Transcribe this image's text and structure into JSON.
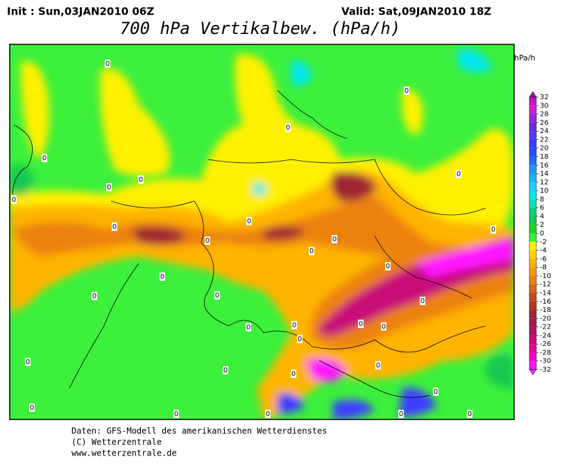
{
  "header": {
    "init": "Init : Sun,03JAN2010 06Z",
    "valid": "Valid: Sat,09JAN2010 18Z",
    "title": "700 hPa Vertikalbew. (hPa/h)"
  },
  "map": {
    "contour_label": "0"
  },
  "legend": {
    "unit": "hPa/h",
    "levels": [
      32,
      30,
      28,
      26,
      24,
      22,
      20,
      18,
      16,
      14,
      12,
      10,
      8,
      6,
      4,
      2,
      0,
      -2,
      -4,
      -6,
      -8,
      -10,
      -12,
      -14,
      -16,
      -18,
      -20,
      -22,
      -24,
      -26,
      -28,
      -30,
      -32
    ],
    "colors": [
      "#8c1a8c",
      "#c814c8",
      "#d21ed2",
      "#9628dc",
      "#6e28e6",
      "#5a3cf0",
      "#3c3cff",
      "#2850ff",
      "#1e6eff",
      "#1e96ff",
      "#14b4ff",
      "#1ed2ff",
      "#00e6f0",
      "#00e6b4",
      "#00d282",
      "#14c850",
      "#1ed21e",
      "#3cf03c",
      "#fff000",
      "#ffd200",
      "#ffb400",
      "#f59b0a",
      "#eb820a",
      "#dc6414",
      "#c84b1e",
      "#b4371e",
      "#a02832",
      "#a01e46",
      "#b4145a",
      "#c80a78",
      "#dc0a96",
      "#f000c8",
      "#ff14ff",
      "#d83cf0"
    ]
  },
  "footer": {
    "lines": [
      "Daten: GFS-Modell des amerikanischen Wetterdienstes",
      "(C) Wetterzentrale",
      "www.wetterzentrale.de"
    ]
  }
}
